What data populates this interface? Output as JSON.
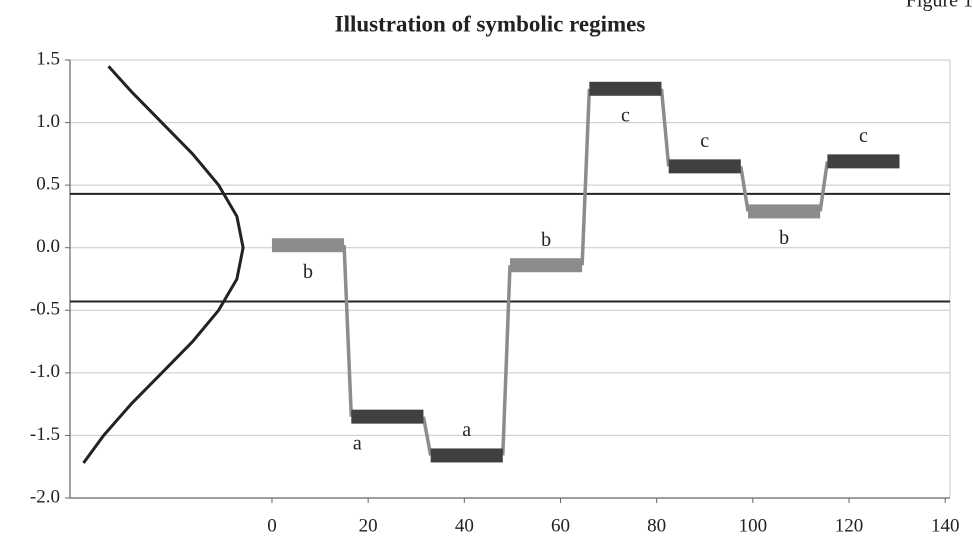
{
  "chart_data": {
    "type": "regime",
    "title": "Illustration of symbolic regimes",
    "figure_label": "Figure 1",
    "xlim": [
      -42,
      141
    ],
    "ylim": [
      -2,
      1.5
    ],
    "xticks": [
      0,
      20,
      40,
      60,
      80,
      100,
      120,
      140
    ],
    "yticks": [
      1.5,
      {
        "value": 1,
        "label": "1.0"
      },
      0.5,
      {
        "value": 0,
        "label": "0.0"
      },
      -0.5,
      {
        "value": -1,
        "label": "-1.0"
      },
      -1.5,
      {
        "value": -2,
        "label": "-2.0"
      }
    ],
    "grid": true,
    "breakpoints": [
      0.43,
      -0.43
    ],
    "breakpoint_color": "#222222",
    "connector_color": "#8c8c8c",
    "segments": {
      "x_start": [
        0,
        16.5,
        33,
        49.5,
        66,
        82.5,
        99,
        115.5
      ],
      "x_end": [
        15,
        31.5,
        48,
        64.5,
        81,
        97.5,
        114,
        130.5
      ],
      "values": [
        0.02,
        -1.35,
        -1.66,
        -0.14,
        1.27,
        0.65,
        0.29,
        0.69
      ],
      "labels": [
        "b",
        "a",
        "a",
        "b",
        "c",
        "c",
        "b",
        "c"
      ],
      "label_position": [
        "below",
        "below",
        "above",
        "above",
        "below",
        "above",
        "below",
        "above"
      ],
      "colors": [
        "#8c8c8c",
        "#404040",
        "#404040",
        "#8c8c8c",
        "#404040",
        "#404040",
        "#8c8c8c",
        "#404040"
      ]
    },
    "density_curve": {
      "color": "#222222",
      "x": [
        -39.2,
        -35.0,
        -29.3,
        -22.9,
        -16.5,
        -11.1,
        -7.3,
        -6.0,
        -7.3,
        -11.1,
        -16.5,
        -22.9,
        -29.3,
        -34.0
      ],
      "y": [
        -1.72,
        -1.5,
        -1.25,
        -1.0,
        -0.75,
        -0.5,
        -0.25,
        0,
        0.25,
        0.5,
        0.75,
        1.0,
        1.25,
        1.45
      ]
    }
  }
}
